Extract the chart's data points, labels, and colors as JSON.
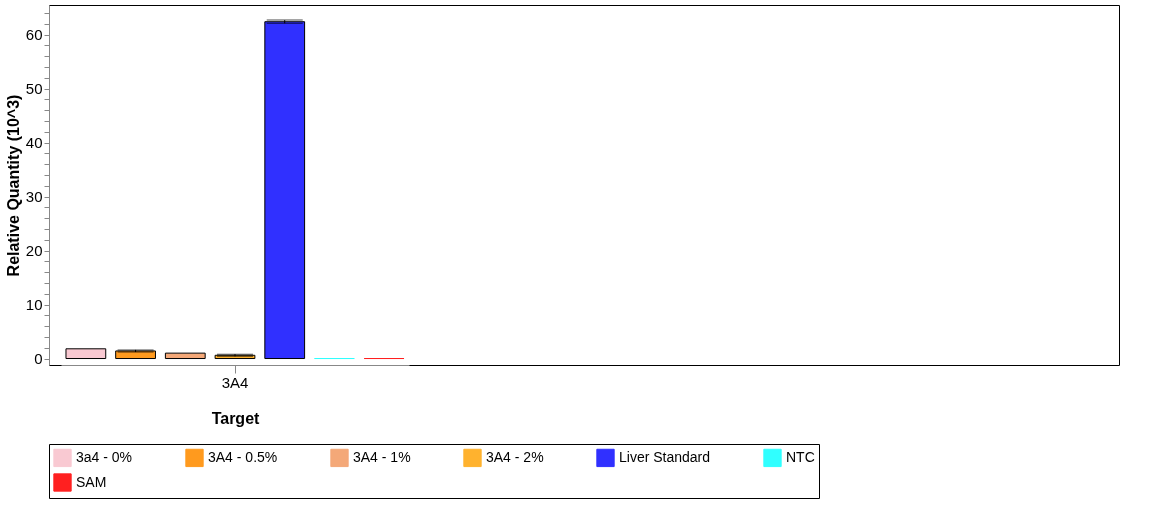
{
  "chart_data": {
    "type": "bar",
    "xlabel": "Target",
    "ylabel": "Relative Quantity (10^3)",
    "categories": [
      "3A4"
    ],
    "series": [
      {
        "name": "3a4 - 0%",
        "color": "#f9c9d2",
        "values": [
          1.8
        ],
        "errors": [
          null
        ]
      },
      {
        "name": "3A4 - 0.5%",
        "color": "#ff9a1e",
        "values": [
          1.4
        ],
        "errors": [
          0.2
        ]
      },
      {
        "name": "3A4 - 1%",
        "color": "#f4a878",
        "values": [
          1.0
        ],
        "errors": [
          null
        ]
      },
      {
        "name": "3A4 - 2%",
        "color": "#ffb22e",
        "values": [
          0.6
        ],
        "errors": [
          0.2
        ]
      },
      {
        "name": "Liver Standard",
        "color": "#3030ff",
        "values": [
          62.4
        ],
        "errors": [
          0.3
        ]
      },
      {
        "name": "NTC",
        "color": "#30ffff",
        "values": [
          0
        ]
      },
      {
        "name": "SAM",
        "color": "#ff2020",
        "values": [
          0
        ]
      }
    ],
    "ylim": [
      -1.2,
      65.5
    ],
    "yticks": [
      0,
      {
        "value": 2,
        "label": null
      },
      {
        "value": 4,
        "label": null
      },
      {
        "value": 6,
        "label": null
      },
      {
        "value": 8,
        "label": null
      },
      10,
      {
        "value": 12,
        "label": null
      },
      {
        "value": 14,
        "label": null
      },
      {
        "value": 16,
        "label": null
      },
      {
        "value": 18,
        "label": null
      },
      20,
      {
        "value": 22,
        "label": null
      },
      {
        "value": 24,
        "label": null
      },
      {
        "value": 26,
        "label": null
      },
      {
        "value": 28,
        "label": null
      },
      30,
      {
        "value": 32,
        "label": null
      },
      {
        "value": 34,
        "label": null
      },
      {
        "value": 36,
        "label": null
      },
      {
        "value": 38,
        "label": null
      },
      40,
      {
        "value": 42,
        "label": null
      },
      {
        "value": 44,
        "label": null
      },
      {
        "value": 46,
        "label": null
      },
      {
        "value": 48,
        "label": null
      },
      50,
      {
        "value": 52,
        "label": null
      },
      {
        "value": 54,
        "label": null
      },
      {
        "value": 56,
        "label": null
      },
      {
        "value": 58,
        "label": null
      },
      60,
      {
        "value": 62,
        "label": null
      },
      {
        "value": 64,
        "label": null
      }
    ],
    "grid": false,
    "legend": "bottom"
  }
}
